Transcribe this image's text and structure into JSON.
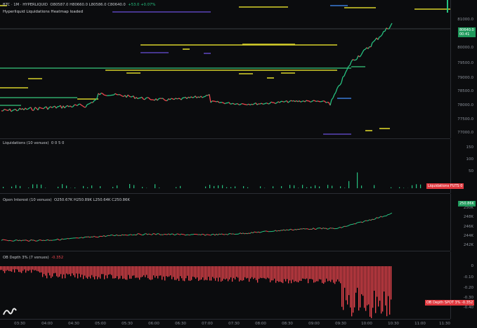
{
  "header": {
    "symbol_line": "BTC · 1M · HYPERLIQUID",
    "ohlc": "O80587.0  H80660.0  L80586.0  C80640.0",
    "change": "+53.0",
    "change_pct": "+0.07%",
    "loaded_note": "Hyperliquid Liquidations Heatmap loaded"
  },
  "price_axis": {
    "ticks": [
      "81000.0",
      "80000.0",
      "79500.0",
      "79000.0",
      "78500.0",
      "78000.0",
      "77500.0",
      "77000.0"
    ],
    "current_price": "80640.0",
    "current_sub": "00:41"
  },
  "liquidations": {
    "legend": "Liquidations (10 venues)",
    "legend_vals": "0  0   5  0",
    "ticks": [
      "150",
      "100",
      "50"
    ],
    "badge": "Liquidations FUTS",
    "badge_val": "0"
  },
  "open_interest": {
    "legend": "Open Interest (10 venues)",
    "legend_vals": "O250.67K  H250.89K  L250.64K  C250.86K",
    "ticks": [
      "250K",
      "248K",
      "246K",
      "244K",
      "242K"
    ],
    "current": "250.86K"
  },
  "ob_depth": {
    "legend": "OB Depth 3% (7 venues)",
    "legend_val": "-0.352",
    "ticks": [
      "0",
      "-0.10",
      "-0.20",
      "-0.30",
      "-0.40"
    ],
    "badge": "OB Depth SPOT 3%",
    "badge_val": "-0.352"
  },
  "time_axis": [
    "03:30",
    "04:00",
    "04:30",
    "05:00",
    "05:30",
    "06:00",
    "06:30",
    "07:00",
    "07:30",
    "08:00",
    "08:30",
    "09:00",
    "09:30",
    "10:00",
    "10:30",
    "11:00",
    "11:30"
  ],
  "colors": {
    "up": "#27c281",
    "down": "#f0474f",
    "heat_yellow": "#d8d22a",
    "heat_green": "#2faa6a",
    "heat_purple": "#5b45b8"
  }
}
